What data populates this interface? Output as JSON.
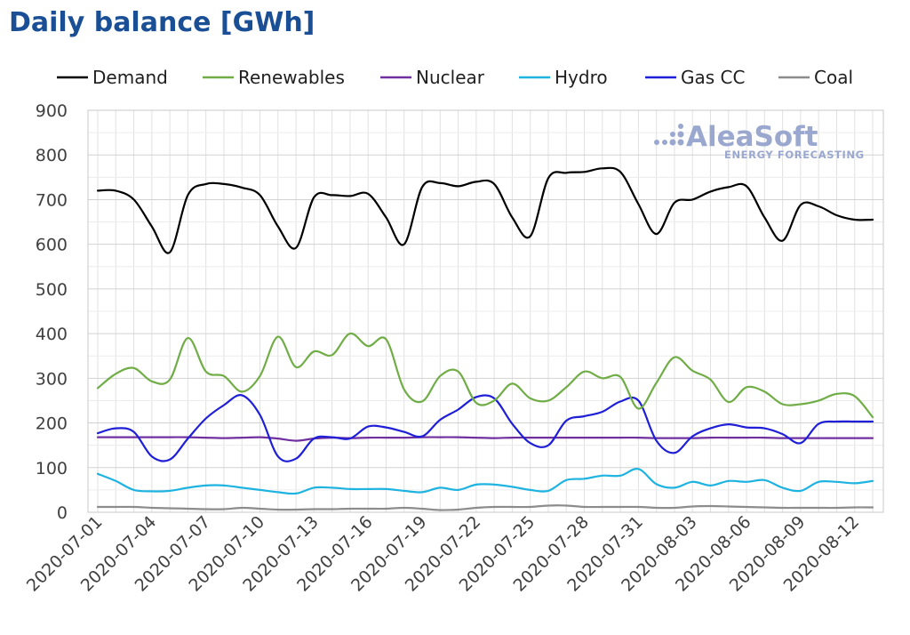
{
  "chart_data": {
    "type": "line",
    "title": "Daily balance [GWh]",
    "xlabel": "",
    "ylabel": "",
    "ylim": [
      0,
      900
    ],
    "yticks": [
      0,
      100,
      200,
      300,
      400,
      500,
      600,
      700,
      800,
      900
    ],
    "grid": true,
    "legend_position": "top",
    "x": [
      "2020-07-01",
      "2020-07-02",
      "2020-07-03",
      "2020-07-04",
      "2020-07-05",
      "2020-07-06",
      "2020-07-07",
      "2020-07-08",
      "2020-07-09",
      "2020-07-10",
      "2020-07-11",
      "2020-07-12",
      "2020-07-13",
      "2020-07-14",
      "2020-07-15",
      "2020-07-16",
      "2020-07-17",
      "2020-07-18",
      "2020-07-19",
      "2020-07-20",
      "2020-07-21",
      "2020-07-22",
      "2020-07-23",
      "2020-07-24",
      "2020-07-25",
      "2020-07-26",
      "2020-07-27",
      "2020-07-28",
      "2020-07-29",
      "2020-07-30",
      "2020-07-31",
      "2020-08-01",
      "2020-08-02",
      "2020-08-03",
      "2020-08-04",
      "2020-08-05",
      "2020-08-06",
      "2020-08-07",
      "2020-08-08",
      "2020-08-09",
      "2020-08-10",
      "2020-08-11",
      "2020-08-12",
      "2020-08-13"
    ],
    "x_tick_labels": [
      "2020-07-01",
      "2020-07-04",
      "2020-07-07",
      "2020-07-10",
      "2020-07-13",
      "2020-07-16",
      "2020-07-19",
      "2020-07-22",
      "2020-07-25",
      "2020-07-28",
      "2020-07-31",
      "2020-08-03",
      "2020-08-06",
      "2020-08-09",
      "2020-08-12"
    ],
    "series": [
      {
        "name": "Demand",
        "color": "#000000",
        "values": [
          720,
          720,
          700,
          640,
          582,
          710,
          735,
          735,
          727,
          710,
          640,
          592,
          705,
          710,
          708,
          713,
          660,
          600,
          728,
          737,
          730,
          740,
          735,
          660,
          618,
          748,
          760,
          762,
          770,
          762,
          690,
          623,
          693,
          700,
          718,
          728,
          730,
          660,
          608,
          688,
          685,
          665,
          655,
          655
        ]
      },
      {
        "name": "Renewables",
        "color": "#70ad47",
        "values": [
          278,
          310,
          323,
          293,
          297,
          390,
          315,
          305,
          270,
          305,
          393,
          325,
          360,
          352,
          400,
          372,
          387,
          275,
          248,
          305,
          315,
          245,
          250,
          288,
          255,
          250,
          280,
          315,
          300,
          303,
          232,
          290,
          347,
          317,
          297,
          247,
          280,
          270,
          242,
          242,
          250,
          265,
          260,
          213
        ]
      },
      {
        "name": "Nuclear",
        "color": "#7030a0",
        "values": [
          168,
          168,
          168,
          168,
          168,
          168,
          167,
          166,
          167,
          168,
          165,
          160,
          165,
          167,
          166,
          167,
          167,
          167,
          168,
          168,
          168,
          167,
          166,
          167,
          167,
          167,
          167,
          167,
          167,
          167,
          167,
          166,
          166,
          166,
          167,
          167,
          167,
          167,
          166,
          166,
          166,
          166,
          166,
          166
        ]
      },
      {
        "name": "Hydro",
        "color": "#1fb3e0",
        "values": [
          86,
          70,
          50,
          47,
          48,
          55,
          60,
          60,
          55,
          50,
          45,
          42,
          55,
          55,
          52,
          52,
          52,
          48,
          45,
          55,
          50,
          62,
          62,
          57,
          50,
          48,
          72,
          75,
          82,
          82,
          97,
          63,
          55,
          68,
          60,
          70,
          68,
          72,
          55,
          48,
          68,
          68,
          65,
          70
        ]
      },
      {
        "name": "Gas CC",
        "color": "#1f1fd8",
        "values": [
          177,
          188,
          180,
          125,
          118,
          165,
          210,
          240,
          262,
          218,
          125,
          120,
          165,
          168,
          165,
          192,
          190,
          180,
          170,
          207,
          230,
          258,
          255,
          198,
          155,
          150,
          205,
          215,
          225,
          248,
          250,
          160,
          133,
          170,
          188,
          197,
          190,
          188,
          175,
          155,
          198,
          203,
          203,
          203
        ]
      },
      {
        "name": "Coal",
        "color": "#8c8c8c",
        "values": [
          12,
          12,
          12,
          10,
          9,
          8,
          7,
          7,
          10,
          8,
          6,
          6,
          7,
          7,
          8,
          8,
          8,
          10,
          8,
          5,
          6,
          10,
          12,
          12,
          12,
          15,
          15,
          12,
          12,
          12,
          12,
          10,
          10,
          13,
          14,
          13,
          12,
          11,
          10,
          10,
          10,
          10,
          11,
          11
        ]
      }
    ]
  },
  "watermark": {
    "brand": "AleaSoft",
    "tagline": "ENERGY FORECASTING"
  }
}
